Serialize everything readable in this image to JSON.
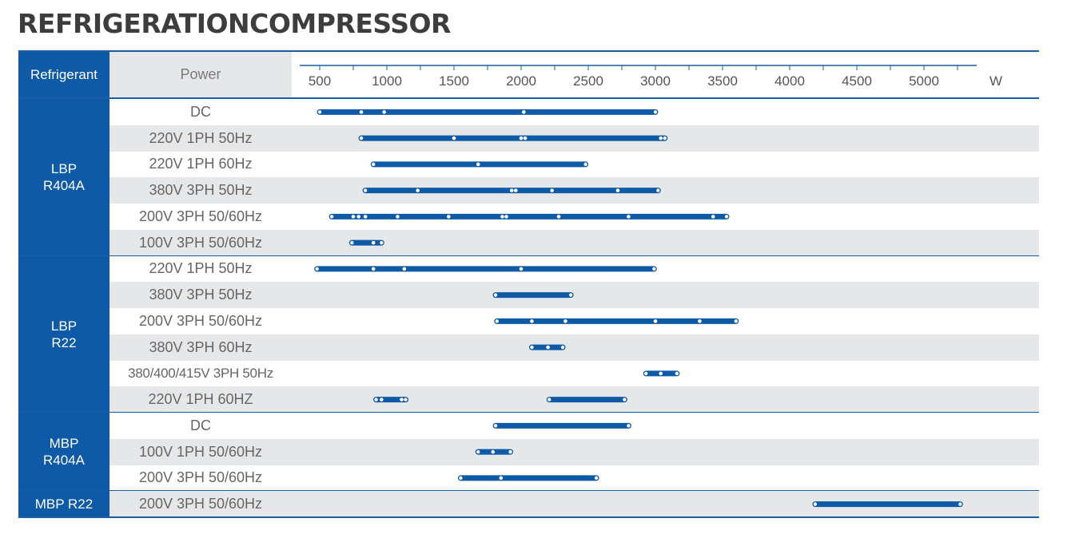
{
  "title": "REFRIGERATIONCOMPRESSOR",
  "header": {
    "refrigerant_label": "Refrigerant",
    "power_label": "Power"
  },
  "colors": {
    "primary": "#0e5aa7",
    "row_alt": "#e6e7e9",
    "bar": "#0e5aa7"
  },
  "chart_data": {
    "type": "range-bar",
    "x_unit": "W",
    "x_ticks": [
      500,
      1000,
      1500,
      2000,
      2500,
      3000,
      3500,
      4000,
      4500,
      5000
    ],
    "xlim": [
      500,
      5300
    ],
    "groups": [
      {
        "name": "LBP\nR404A",
        "rows": [
          {
            "label": "DC",
            "segments": [
              [
                500,
                3000
              ]
            ],
            "markers": [
              810,
              980,
              2020
            ]
          },
          {
            "label": "220V 1PH 50Hz",
            "segments": [
              [
                810,
                3070
              ]
            ],
            "markers": [
              1500,
              2000,
              2030,
              3040
            ]
          },
          {
            "label": "220V 1PH 60Hz",
            "segments": [
              [
                900,
                2480
              ]
            ],
            "markers": [
              1680
            ]
          },
          {
            "label": "380V 3PH 50Hz",
            "segments": [
              [
                840,
                3020
              ]
            ],
            "markers": [
              1230,
              1930,
              1960,
              2230,
              2720
            ]
          },
          {
            "label": "200V 3PH 50/60Hz",
            "segments": [
              [
                590,
                3530
              ]
            ],
            "markers": [
              750,
              790,
              840,
              1080,
              1460,
              1860,
              1890,
              2280,
              2800,
              3430
            ]
          },
          {
            "label": "100V 3PH 50/60Hz",
            "segments": [
              [
                740,
                960
              ]
            ],
            "markers": [
              900
            ]
          }
        ]
      },
      {
        "name": "LBP\nR22",
        "rows": [
          {
            "label": "220V 1PH 50Hz",
            "segments": [
              [
                480,
                2990
              ]
            ],
            "markers": [
              900,
              1130,
              2000
            ]
          },
          {
            "label": "380V 3PH 50Hz",
            "segments": [
              [
                1810,
                2370
              ]
            ],
            "markers": []
          },
          {
            "label": "200V 3PH 50/60Hz",
            "segments": [
              [
                1820,
                3600
              ]
            ],
            "markers": [
              2080,
              2330,
              3000,
              3330
            ]
          },
          {
            "label": "380V 3PH 60Hz",
            "segments": [
              [
                2080,
                2310
              ]
            ],
            "markers": [
              2200
            ]
          },
          {
            "label": "380/400/415V 3PH 50Hz",
            "segments": [
              [
                2930,
                3160
              ]
            ],
            "markers": [
              3040
            ]
          },
          {
            "label": "220V 1PH 60HZ",
            "segments": [
              [
                920,
                1140
              ],
              [
                2210,
                2770
              ]
            ],
            "markers": [
              960,
              1110
            ]
          }
        ]
      },
      {
        "name": "MBP\nR404A",
        "rows": [
          {
            "label": "DC",
            "segments": [
              [
                1810,
                2800
              ]
            ],
            "markers": []
          },
          {
            "label": "100V 1PH 50/60Hz",
            "segments": [
              [
                1680,
                1920
              ]
            ],
            "markers": [
              1790
            ]
          },
          {
            "label": "200V 3PH 50/60Hz",
            "segments": [
              [
                1550,
                2560
              ]
            ],
            "markers": [
              1850
            ]
          }
        ]
      },
      {
        "name": "MBP R22",
        "rows": [
          {
            "label": "200V 3PH 50/60Hz",
            "segments": [
              [
                4190,
                5270
              ]
            ],
            "markers": []
          }
        ]
      }
    ]
  }
}
